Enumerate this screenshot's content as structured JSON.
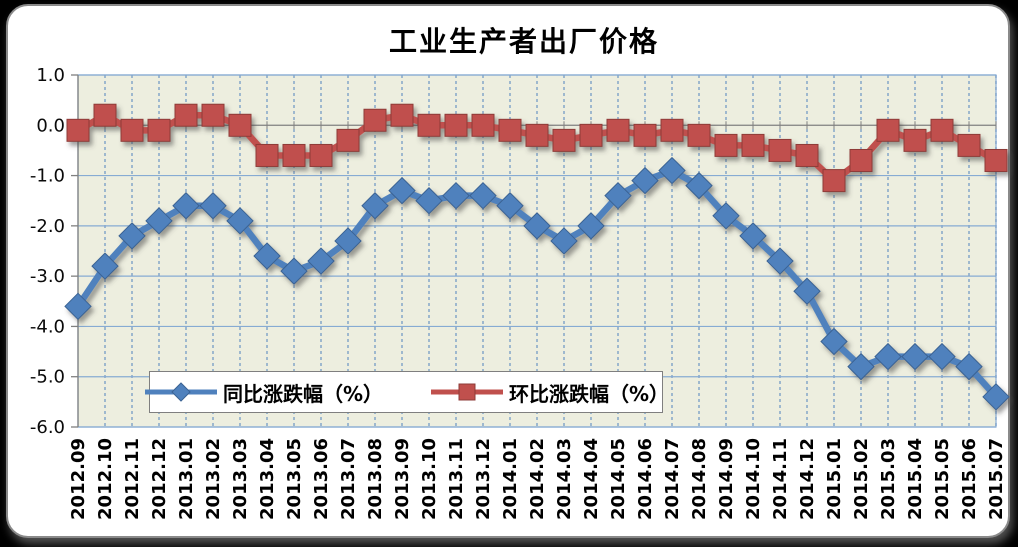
{
  "colors": {
    "canvas_bg": "#000000",
    "frame_bg": "#FFFFFF",
    "frame_border": "#8A8A8A",
    "plot_bg": "#EDEEDF",
    "h_gridline": "#87ABD3",
    "v_gridline": "#4F81BD",
    "axis": "#808080",
    "legend_border": "#7F7F7F",
    "series_yoy": "#4F81BD",
    "series_mom": "#C0504D"
  },
  "chart_data": {
    "type": "line",
    "title": "工业生产者出厂价格",
    "categories": [
      "2012.09",
      "2012.10",
      "2012.11",
      "2012.12",
      "2013.01",
      "2013.02",
      "2013.03",
      "2013.04",
      "2013.05",
      "2013.06",
      "2013.07",
      "2013.08",
      "2013.09",
      "2013.10",
      "2013.11",
      "2013.12",
      "2014.01",
      "2014.02",
      "2014.03",
      "2014.04",
      "2014.05",
      "2014.06",
      "2014.07",
      "2014.08",
      "2014.09",
      "2014.10",
      "2014.11",
      "2014.12",
      "2015.01",
      "2015.02",
      "2015.03",
      "2015.04",
      "2015.05",
      "2015.06",
      "2015.07"
    ],
    "series": [
      {
        "name": "同比涨跌幅（%）",
        "marker": "diamond",
        "color": "#4F81BD",
        "edge_color": "#3A6293",
        "values": [
          -3.6,
          -2.8,
          -2.2,
          -1.9,
          -1.6,
          -1.6,
          -1.9,
          -2.6,
          -2.9,
          -2.7,
          -2.3,
          -1.6,
          -1.3,
          -1.5,
          -1.4,
          -1.4,
          -1.6,
          -2.0,
          -2.3,
          -2.0,
          -1.4,
          -1.1,
          -0.9,
          -1.2,
          -1.8,
          -2.2,
          -2.7,
          -3.3,
          -4.3,
          -4.8,
          -4.6,
          -4.6,
          -4.6,
          -4.8,
          -5.4
        ]
      },
      {
        "name": "环比涨跌幅（%）",
        "marker": "square",
        "color": "#C0504D",
        "edge_color": "#8E3B38",
        "values": [
          -0.1,
          0.2,
          -0.1,
          -0.1,
          0.2,
          0.2,
          0.0,
          -0.6,
          -0.6,
          -0.6,
          -0.3,
          0.1,
          0.2,
          0.0,
          0.0,
          0.0,
          -0.1,
          -0.2,
          -0.3,
          -0.2,
          -0.1,
          -0.2,
          -0.1,
          -0.2,
          -0.4,
          -0.4,
          -0.5,
          -0.6,
          -1.1,
          -0.7,
          -0.1,
          -0.3,
          -0.1,
          -0.4,
          -0.7
        ]
      }
    ],
    "ylim": [
      -6.0,
      1.0
    ],
    "y_tick_step": 1.0,
    "y_tick_labels": [
      "1.0",
      "0.0",
      "-1.0",
      "-2.0",
      "-3.0",
      "-4.0",
      "-5.0",
      "-6.0"
    ],
    "xlabel": "",
    "ylabel": "",
    "x_label_rotation": -90,
    "grid": {
      "horizontal": "solid",
      "vertical": "dashed-per-category"
    },
    "legend_position": "inside-bottom",
    "category_axis_position": "on-tick-marks",
    "zero_line": true
  }
}
